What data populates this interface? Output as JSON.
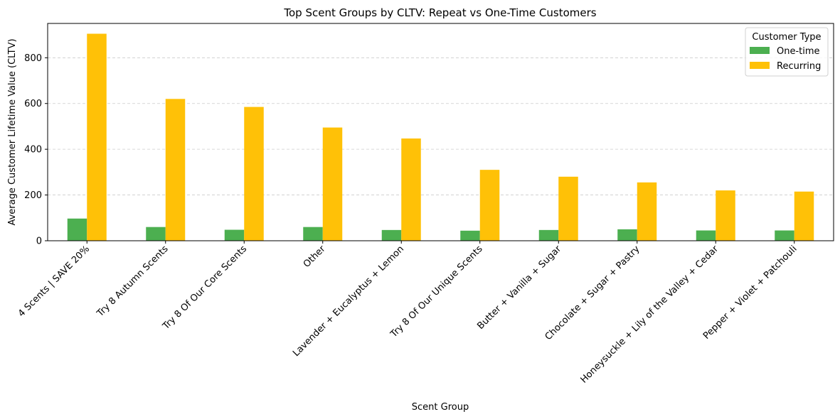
{
  "chart_data": {
    "type": "bar",
    "title": "Top Scent Groups by CLTV: Repeat vs One-Time Customers",
    "xlabel": "Scent Group",
    "ylabel": "Average Customer Lifetime Value (CLTV)",
    "ylim": [
      0,
      950
    ],
    "yticks": [
      0,
      200,
      400,
      600,
      800
    ],
    "grid": "y-dashed",
    "legend_title": "Customer Type",
    "legend_position": "top-right",
    "categories": [
      "4 Scents | SAVE 20%",
      "Try 8 Autumn Scents",
      "Try 8 Of Our Core Scents",
      "Other",
      "Lavender + Eucalyptus + Lemon",
      "Try 8 Of Our Unique Scents",
      "Butter + Vanilla + Sugar",
      "Chocolate + Sugar + Pastry",
      "Honeysuckle + Lily of the Valley + Cedar",
      "Pepper + Violet + Patchouli"
    ],
    "series": [
      {
        "name": "One-time",
        "color": "#4caf50",
        "values": [
          97,
          60,
          48,
          60,
          47,
          44,
          47,
          50,
          45,
          45
        ]
      },
      {
        "name": "Recurring",
        "color": "#ffc107",
        "values": [
          905,
          620,
          585,
          495,
          447,
          310,
          280,
          255,
          220,
          215
        ]
      }
    ]
  }
}
